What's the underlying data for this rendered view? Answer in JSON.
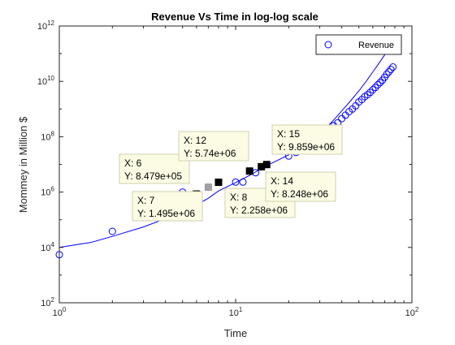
{
  "chart_data": {
    "type": "scatter",
    "title": "Revenue Vs Time in log-log scale",
    "xlabel": "Time",
    "ylabel": "Mommey in Million $",
    "x_scale": "log",
    "y_scale": "log",
    "xlim": [
      1,
      100
    ],
    "ylim": [
      100,
      1000000000000
    ],
    "grid": false,
    "legend_position": "top-right",
    "x_ticks": [
      {
        "value": 1,
        "base": "10",
        "exp": "0"
      },
      {
        "value": 10,
        "base": "10",
        "exp": "1"
      },
      {
        "value": 100,
        "base": "10",
        "exp": "2"
      }
    ],
    "y_ticks": [
      {
        "value": 100,
        "base": "10",
        "exp": "2"
      },
      {
        "value": 10000,
        "base": "10",
        "exp": "4"
      },
      {
        "value": 1000000,
        "base": "10",
        "exp": "6"
      },
      {
        "value": 100000000,
        "base": "10",
        "exp": "8"
      },
      {
        "value": 10000000000,
        "base": "10",
        "exp": "10"
      },
      {
        "value": 1000000000000,
        "base": "10",
        "exp": "12"
      }
    ],
    "series": [
      {
        "name": "Revenue",
        "color": "#0000ff",
        "marker": "circle",
        "points": [
          [
            1,
            5500
          ],
          [
            2,
            38000
          ],
          [
            5,
            1000000
          ],
          [
            6,
            847900
          ],
          [
            7,
            1495000
          ],
          [
            8,
            2258000
          ],
          [
            10,
            2300000
          ],
          [
            11,
            2300000
          ],
          [
            12,
            5740000
          ],
          [
            13,
            5000000
          ],
          [
            14,
            8248000
          ],
          [
            15,
            9859000
          ],
          [
            20,
            20000000
          ],
          [
            22,
            27000000
          ],
          [
            24,
            35000000
          ],
          [
            26,
            50000000
          ],
          [
            28,
            65000000
          ],
          [
            30,
            85000000
          ],
          [
            32,
            120000000
          ],
          [
            34,
            180000000
          ],
          [
            36,
            250000000
          ],
          [
            38,
            320000000
          ],
          [
            40,
            450000000
          ],
          [
            42,
            600000000
          ],
          [
            44,
            800000000
          ],
          [
            46,
            1000000000
          ],
          [
            48,
            1300000000
          ],
          [
            50,
            1800000000
          ],
          [
            52,
            2200000000
          ],
          [
            54,
            2800000000
          ],
          [
            56,
            3300000000
          ],
          [
            58,
            4000000000
          ],
          [
            60,
            5000000000
          ],
          [
            62,
            6000000000
          ],
          [
            64,
            7500000000
          ],
          [
            66,
            9000000000
          ],
          [
            68,
            11000000000
          ],
          [
            70,
            14000000000
          ],
          [
            72,
            18000000000
          ],
          [
            74,
            22000000000
          ],
          [
            76,
            27000000000
          ],
          [
            78,
            33000000000
          ]
        ]
      }
    ],
    "fit_curve": {
      "color": "#0000ff",
      "points": [
        [
          1,
          10000
        ],
        [
          1.5,
          15000
        ],
        [
          2,
          25000
        ],
        [
          3,
          55000
        ],
        [
          4,
          110000
        ],
        [
          5,
          200000
        ],
        [
          6,
          340000
        ],
        [
          7,
          600000
        ],
        [
          8,
          1100000
        ],
        [
          10,
          2200000
        ],
        [
          12,
          4000000
        ],
        [
          15,
          9000000
        ],
        [
          20,
          22000000
        ],
        [
          25,
          50000000
        ],
        [
          30,
          130000000
        ],
        [
          35,
          330000000
        ],
        [
          40,
          850000000
        ],
        [
          45,
          2000000000
        ],
        [
          50,
          4500000000
        ],
        [
          55,
          10000000000
        ],
        [
          60,
          22000000000
        ],
        [
          65,
          45000000000
        ],
        [
          70,
          90000000000
        ],
        [
          75,
          180000000000
        ],
        [
          78,
          270000000000
        ]
      ]
    },
    "datatips": [
      {
        "x": 6,
        "y": 847900,
        "x_label": "X: 6",
        "y_label": "Y: 8.479e+05",
        "selected": false,
        "box_side": "upper-left"
      },
      {
        "x": 7,
        "y": 1495000,
        "x_label": "X: 7",
        "y_label": "Y: 1.495e+06",
        "selected": true,
        "box_side": "lower-left"
      },
      {
        "x": 8,
        "y": 2258000,
        "x_label": "X: 8",
        "y_label": "Y: 2.258e+06",
        "selected": false,
        "box_side": "lower-right"
      },
      {
        "x": 12,
        "y": 5740000,
        "x_label": "X: 12",
        "y_label": "Y: 5.74e+06",
        "selected": false,
        "box_side": "upper-left"
      },
      {
        "x": 14,
        "y": 8248000,
        "x_label": "X: 14",
        "y_label": "Y: 8.248e+06",
        "selected": false,
        "box_side": "lower-right"
      },
      {
        "x": 15,
        "y": 9859000,
        "x_label": "X: 15",
        "y_label": "Y: 9.859e+06",
        "selected": false,
        "box_side": "upper-right"
      }
    ]
  }
}
